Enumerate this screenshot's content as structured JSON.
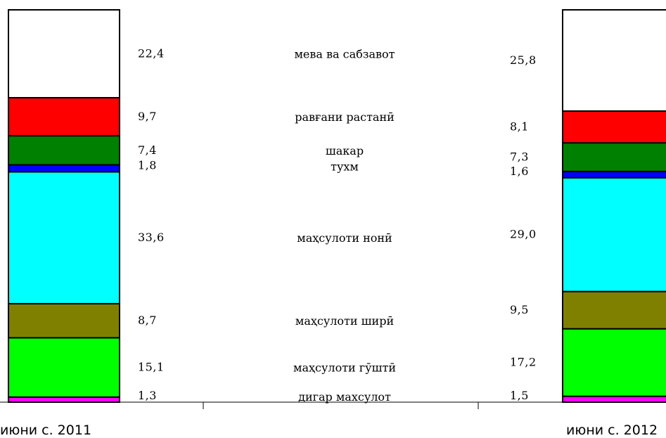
{
  "chart_data": {
    "type": "bar",
    "stacked": true,
    "categories": [
      "июни с. 2011",
      "июни с. 2012"
    ],
    "ylim": [
      0,
      100
    ],
    "series": [
      {
        "name": "дигар махсулот",
        "color": "#ff00ff",
        "values": [
          1.3,
          1.5
        ],
        "labels": [
          "1,3",
          "1,5"
        ]
      },
      {
        "name": "маҳсулоти гӯштӣ",
        "color": "#00ff00",
        "values": [
          15.1,
          17.2
        ],
        "labels": [
          "15,1",
          "17,2"
        ]
      },
      {
        "name": "маҳсулоти ширӣ",
        "color": "#808000",
        "values": [
          8.7,
          9.5
        ],
        "labels": [
          "8,7",
          "9,5"
        ]
      },
      {
        "name": "маҳсулоти нонӣ",
        "color": "#00ffff",
        "values": [
          33.6,
          29.0
        ],
        "labels": [
          "33,6",
          "29,0"
        ]
      },
      {
        "name": "тухм",
        "color": "#0000ff",
        "values": [
          1.8,
          1.6
        ],
        "labels": [
          "1,8",
          "1,6"
        ]
      },
      {
        "name": "шакар",
        "color": "#008000",
        "values": [
          7.4,
          7.3
        ],
        "labels": [
          "7,4",
          "7,3"
        ]
      },
      {
        "name": "равғани растанӣ",
        "color": "#ff0000",
        "values": [
          9.7,
          8.1
        ],
        "labels": [
          "9,7",
          "8,1"
        ]
      },
      {
        "name": "мева ва сабзавот",
        "color": "#ffffff",
        "values": [
          22.4,
          25.8
        ],
        "labels": [
          "22,4",
          "25,8"
        ]
      }
    ]
  }
}
